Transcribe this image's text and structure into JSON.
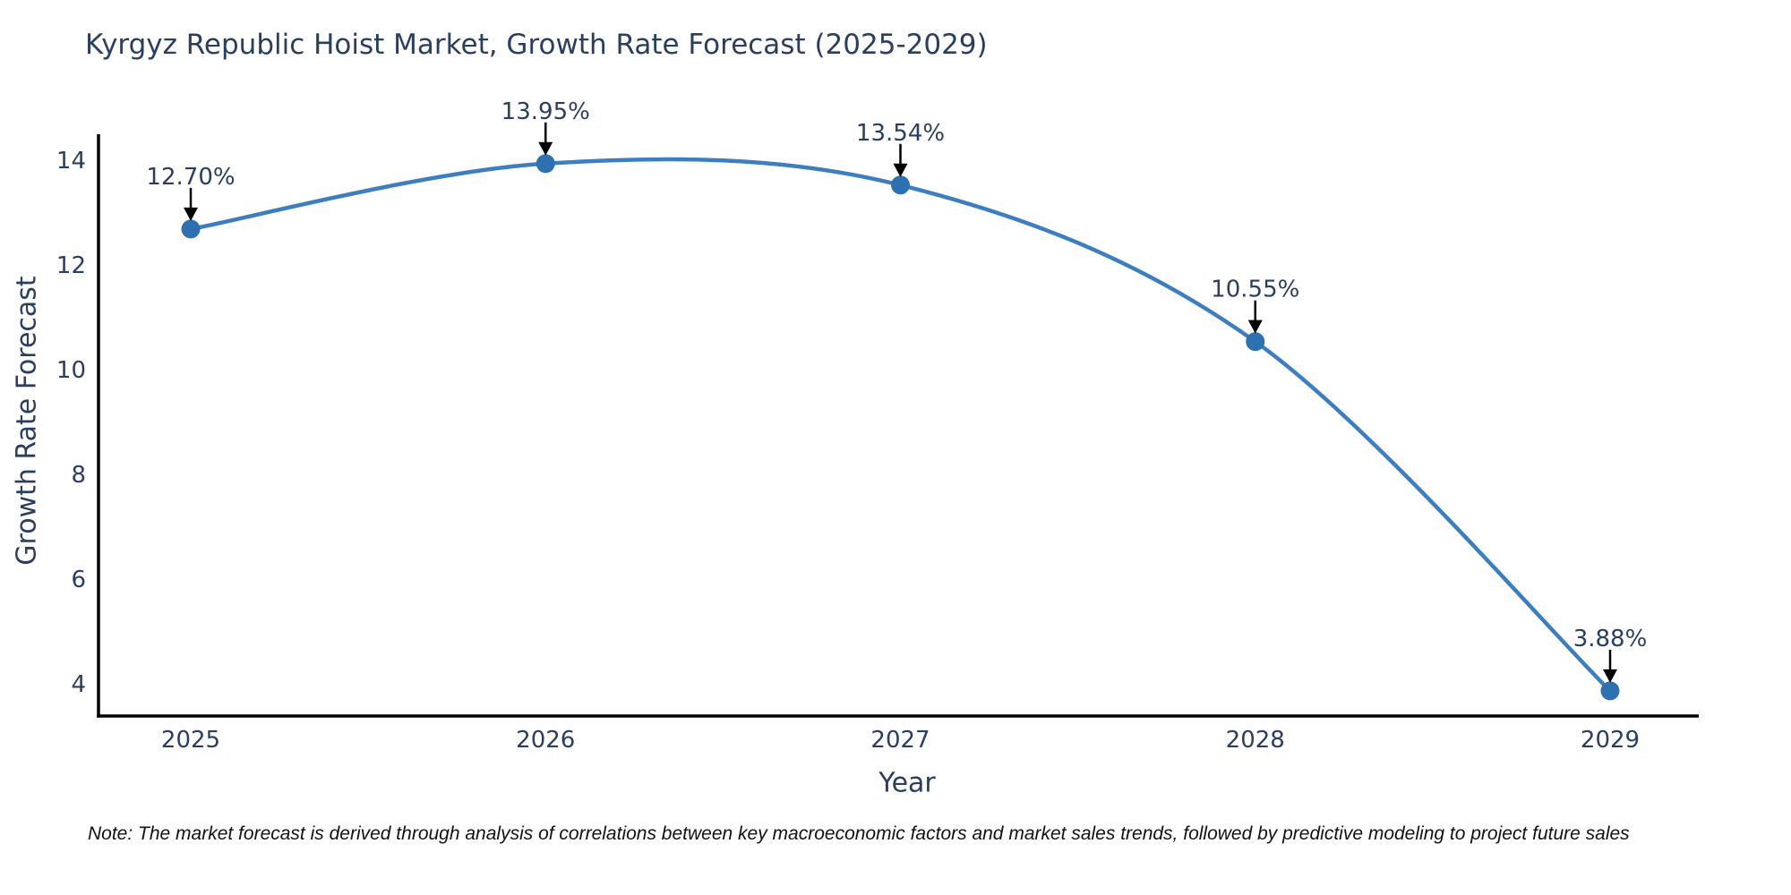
{
  "title": "Kyrgyz Republic Hoist Market, Growth Rate Forecast (2025-2029)",
  "note": "Note: The market forecast is derived through analysis of correlations between key macroeconomic factors and market sales trends, followed by predictive modeling to project future sales",
  "chart_data": {
    "type": "line",
    "line_shape": "spline",
    "x": [
      2025,
      2026,
      2027,
      2028,
      2029
    ],
    "xticks": [
      "2025",
      "2026",
      "2027",
      "2028",
      "2029"
    ],
    "series": [
      {
        "name": "Growth Rate Forecast",
        "values": [
          12.7,
          13.95,
          13.54,
          10.55,
          3.88
        ]
      }
    ],
    "point_labels": [
      "12.70%",
      "13.95%",
      "13.54%",
      "10.55%",
      "3.88%"
    ],
    "title": "Kyrgyz Republic Hoist Market, Growth Rate Forecast (2025-2029)",
    "xlabel": "Year",
    "ylabel": "Growth Rate Forecast",
    "yticks": [
      4,
      6,
      8,
      10,
      12,
      14
    ],
    "ylim": [
      3.4,
      14.51
    ],
    "grid": false,
    "legend": "none",
    "markers": true,
    "annotations": "value labels with down arrows above each point",
    "colors": {
      "line": "#3d7ebf",
      "marker": "#2d71b0",
      "axis": "#000000",
      "text": "#2a3f5f",
      "arrow": "#000000",
      "background": "#ffffff"
    }
  }
}
